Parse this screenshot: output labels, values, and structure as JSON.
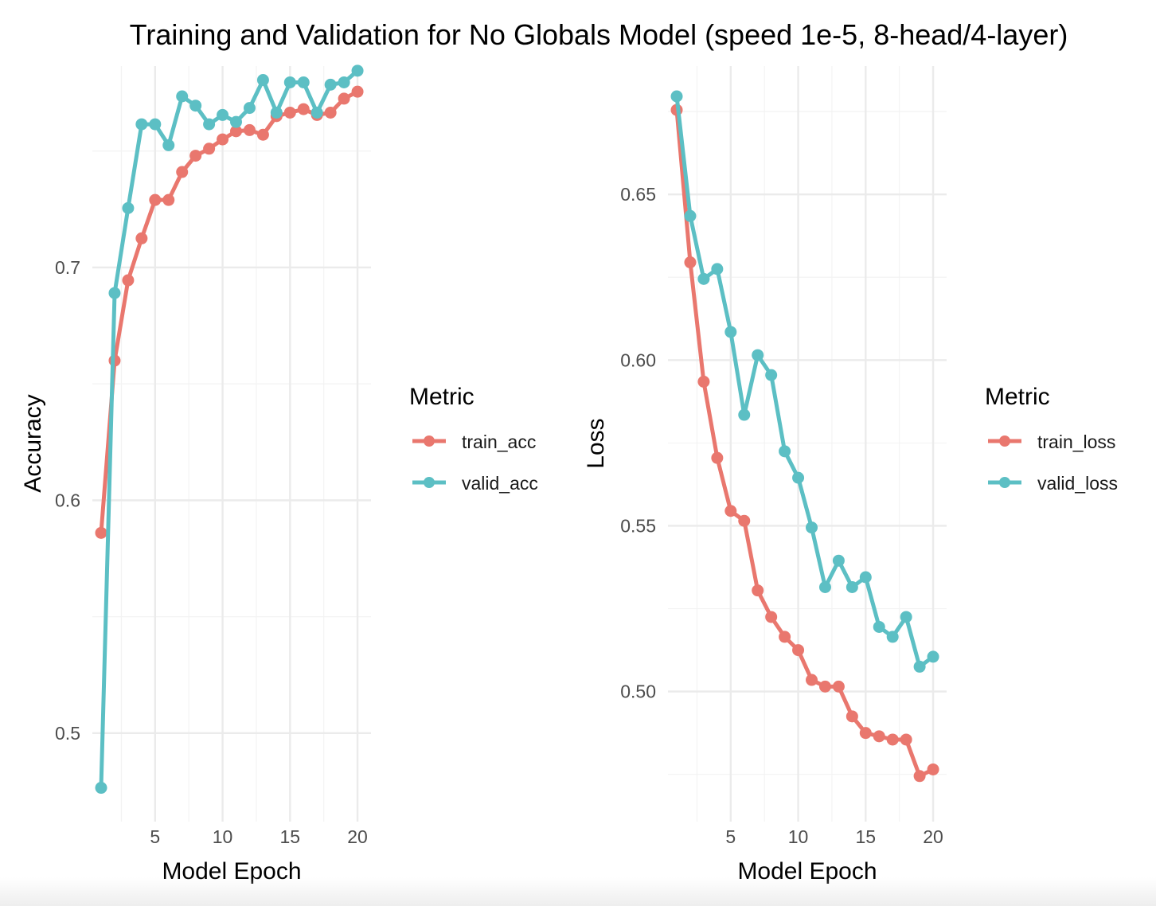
{
  "figure": {
    "title": "Training and Validation for No Globals Model (speed 1e-5, 8-head/4-layer)"
  },
  "chart_data": [
    {
      "type": "line",
      "xlabel": "Model Epoch",
      "ylabel": "Accuracy",
      "x": [
        1,
        2,
        3,
        4,
        5,
        6,
        7,
        8,
        9,
        10,
        11,
        12,
        13,
        14,
        15,
        16,
        17,
        18,
        19,
        20
      ],
      "xlim": [
        0.35,
        21
      ],
      "ylim": [
        0.476,
        0.7735
      ],
      "x_ticks": [
        5,
        10,
        15,
        20
      ],
      "x_tick_labels": [
        "5",
        "10",
        "15",
        "20"
      ],
      "y_ticks": [
        0.5,
        0.6,
        0.7
      ],
      "y_tick_labels": [
        "0.5",
        "0.6",
        "0.7"
      ],
      "grid": true,
      "legend": {
        "title": "Metric",
        "position": "right"
      },
      "series": [
        {
          "name": "train_acc",
          "color": "#E9776E",
          "values": [
            0.586,
            0.66,
            0.6945,
            0.7125,
            0.729,
            0.729,
            0.741,
            0.748,
            0.751,
            0.755,
            0.7585,
            0.759,
            0.757,
            0.765,
            0.7665,
            0.768,
            0.7655,
            0.7665,
            0.7725,
            0.7755
          ]
        },
        {
          "name": "valid_acc",
          "color": "#5CBFC4",
          "values": [
            0.4765,
            0.689,
            0.7255,
            0.7615,
            0.7615,
            0.7525,
            0.7735,
            0.7695,
            0.7615,
            0.7655,
            0.7625,
            0.7685,
            0.7805,
            0.7665,
            0.7795,
            0.7795,
            0.7665,
            0.7785,
            0.7795,
            0.7845
          ]
        }
      ]
    },
    {
      "type": "line",
      "xlabel": "Model Epoch",
      "ylabel": "Loss",
      "x": [
        1,
        2,
        3,
        4,
        5,
        6,
        7,
        8,
        9,
        10,
        11,
        12,
        13,
        14,
        15,
        16,
        17,
        18,
        19,
        20
      ],
      "xlim": [
        0.35,
        21
      ],
      "ylim": [
        0.4706,
        0.6796
      ],
      "x_ticks": [
        5,
        10,
        15,
        20
      ],
      "x_tick_labels": [
        "5",
        "10",
        "15",
        "20"
      ],
      "y_ticks": [
        0.5,
        0.55,
        0.6,
        0.65
      ],
      "y_tick_labels": [
        "0.50",
        "0.55",
        "0.60",
        "0.65"
      ],
      "grid": true,
      "legend": {
        "title": "Metric",
        "position": "right"
      },
      "series": [
        {
          "name": "train_loss",
          "color": "#E9776E",
          "values": [
            0.6755,
            0.6295,
            0.5935,
            0.5705,
            0.5545,
            0.5515,
            0.5305,
            0.5225,
            0.5165,
            0.5125,
            0.5035,
            0.5015,
            0.5015,
            0.4925,
            0.4875,
            0.4865,
            0.4855,
            0.4855,
            0.4745,
            0.4765
          ]
        },
        {
          "name": "valid_loss",
          "color": "#5CBFC4",
          "values": [
            0.6796,
            0.6435,
            0.6245,
            0.6275,
            0.6085,
            0.5835,
            0.6015,
            0.5955,
            0.5725,
            0.5645,
            0.5495,
            0.5315,
            0.5395,
            0.5315,
            0.5345,
            0.5195,
            0.5165,
            0.5225,
            0.5075,
            0.5105
          ]
        }
      ]
    }
  ]
}
